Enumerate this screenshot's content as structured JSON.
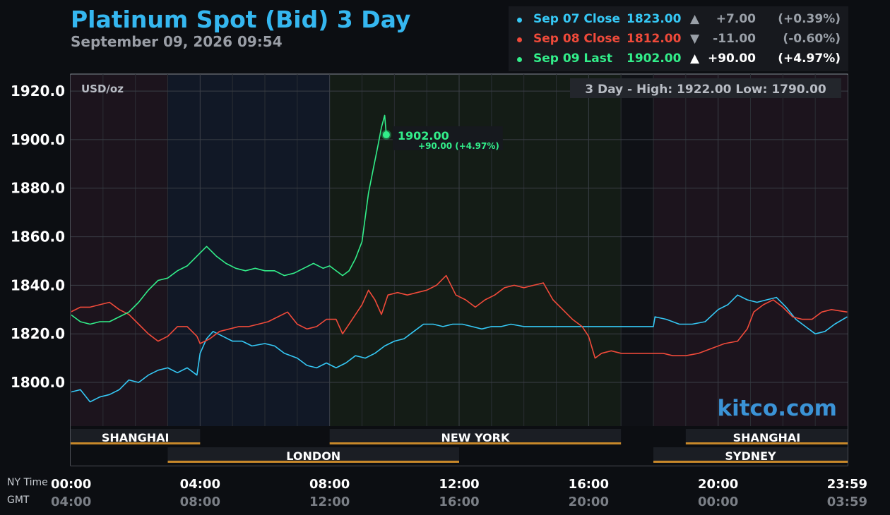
{
  "header": {
    "title": "Platinum Spot (Bid) 3 Day",
    "subtitle": "September 09, 2026 09:54"
  },
  "legend": [
    {
      "label": "Sep 07 Close",
      "price": "1823.00",
      "arrow": "▲",
      "change": "+7.00",
      "pct": "(+0.39%)",
      "color": "#35c8f5"
    },
    {
      "label": "Sep 08 Close",
      "price": "1812.00",
      "arrow": "▼",
      "change": "-11.00",
      "pct": "(-0.60%)",
      "color": "#f04a3a"
    },
    {
      "label": "Sep 09 Last",
      "price": "1902.00",
      "arrow": "▲",
      "change": "+90.00",
      "pct": "(+4.97%)",
      "color": "#32ee8a"
    }
  ],
  "chart_data": {
    "type": "line",
    "unit": "USD/oz",
    "range_label": "3 Day - High: 1922.00  Low: 1790.00",
    "ylim": [
      1782,
      1927
    ],
    "y_ticks": [
      "1920.0",
      "1900.0",
      "1880.0",
      "1860.0",
      "1840.0",
      "1820.0",
      "1800.0"
    ],
    "x_ticks_ny": [
      "00:00",
      "04:00",
      "08:00",
      "12:00",
      "16:00",
      "20:00",
      "23:59"
    ],
    "x_ticks_gmt": [
      "04:00",
      "08:00",
      "12:00",
      "16:00",
      "20:00",
      "00:00",
      "03:59"
    ],
    "axis_names": {
      "ny": "NY Time",
      "gmt": "GMT"
    },
    "last_point": {
      "time_h": 9.75,
      "value": 1902.0,
      "label": "1902.00",
      "change": "+90.00 (+4.97%)"
    },
    "sessions": [
      {
        "name": "SHANGHAI",
        "start": 0,
        "end": 4,
        "row": 1
      },
      {
        "name": "NEW YORK",
        "start": 8,
        "end": 17,
        "row": 1
      },
      {
        "name": "SHANGHAI",
        "start": 19,
        "end": 24,
        "row": 1
      },
      {
        "name": "LONDON",
        "start": 3,
        "end": 12,
        "row": 2
      },
      {
        "name": "SYDNEY",
        "start": 18,
        "end": 24,
        "row": 2
      }
    ],
    "series": [
      {
        "name": "Sep 07 Close",
        "color": "#35c8f5",
        "points": [
          [
            0,
            1796
          ],
          [
            0.3,
            1797
          ],
          [
            0.6,
            1792
          ],
          [
            0.9,
            1794
          ],
          [
            1.2,
            1795
          ],
          [
            1.5,
            1797
          ],
          [
            1.8,
            1801
          ],
          [
            2.1,
            1800
          ],
          [
            2.4,
            1803
          ],
          [
            2.7,
            1805
          ],
          [
            3.0,
            1806
          ],
          [
            3.3,
            1804
          ],
          [
            3.6,
            1806
          ],
          [
            3.9,
            1803
          ],
          [
            4.0,
            1812
          ],
          [
            4.2,
            1818
          ],
          [
            4.4,
            1821
          ],
          [
            4.7,
            1819
          ],
          [
            5.0,
            1817
          ],
          [
            5.3,
            1817
          ],
          [
            5.6,
            1815
          ],
          [
            6.0,
            1816
          ],
          [
            6.3,
            1815
          ],
          [
            6.6,
            1812
          ],
          [
            7.0,
            1810
          ],
          [
            7.3,
            1807
          ],
          [
            7.6,
            1806
          ],
          [
            7.9,
            1808
          ],
          [
            8.2,
            1806
          ],
          [
            8.5,
            1808
          ],
          [
            8.8,
            1811
          ],
          [
            9.1,
            1810
          ],
          [
            9.4,
            1812
          ],
          [
            9.7,
            1815
          ],
          [
            10.0,
            1817
          ],
          [
            10.3,
            1818
          ],
          [
            10.6,
            1821
          ],
          [
            10.9,
            1824
          ],
          [
            11.2,
            1824
          ],
          [
            11.5,
            1823
          ],
          [
            11.8,
            1824
          ],
          [
            12.1,
            1824
          ],
          [
            12.4,
            1823
          ],
          [
            12.7,
            1822
          ],
          [
            13.0,
            1823
          ],
          [
            13.3,
            1823
          ],
          [
            13.6,
            1824
          ],
          [
            14.0,
            1823
          ],
          [
            15.0,
            1823
          ],
          [
            16.0,
            1823
          ],
          [
            17.0,
            1823
          ],
          [
            18.0,
            1823
          ],
          [
            18.05,
            1827
          ],
          [
            18.4,
            1826
          ],
          [
            18.8,
            1824
          ],
          [
            19.2,
            1824
          ],
          [
            19.6,
            1825
          ],
          [
            20.0,
            1830
          ],
          [
            20.3,
            1832
          ],
          [
            20.6,
            1836
          ],
          [
            20.9,
            1834
          ],
          [
            21.2,
            1833
          ],
          [
            21.5,
            1834
          ],
          [
            21.8,
            1835
          ],
          [
            22.1,
            1831
          ],
          [
            22.4,
            1826
          ],
          [
            22.7,
            1823
          ],
          [
            23.0,
            1820
          ],
          [
            23.3,
            1821
          ],
          [
            23.6,
            1824
          ],
          [
            23.99,
            1827
          ]
        ]
      },
      {
        "name": "Sep 08 Close",
        "color": "#f04a3a",
        "points": [
          [
            0,
            1829
          ],
          [
            0.3,
            1831
          ],
          [
            0.6,
            1831
          ],
          [
            0.9,
            1832
          ],
          [
            1.2,
            1833
          ],
          [
            1.5,
            1830
          ],
          [
            1.8,
            1828
          ],
          [
            2.1,
            1824
          ],
          [
            2.4,
            1820
          ],
          [
            2.7,
            1817
          ],
          [
            3.0,
            1819
          ],
          [
            3.3,
            1823
          ],
          [
            3.6,
            1823
          ],
          [
            3.9,
            1819
          ],
          [
            4.0,
            1816
          ],
          [
            4.3,
            1818
          ],
          [
            4.6,
            1821
          ],
          [
            4.9,
            1822
          ],
          [
            5.2,
            1823
          ],
          [
            5.5,
            1823
          ],
          [
            5.8,
            1824
          ],
          [
            6.1,
            1825
          ],
          [
            6.4,
            1827
          ],
          [
            6.7,
            1829
          ],
          [
            7.0,
            1824
          ],
          [
            7.3,
            1822
          ],
          [
            7.6,
            1823
          ],
          [
            7.9,
            1826
          ],
          [
            8.2,
            1826
          ],
          [
            8.4,
            1820
          ],
          [
            8.7,
            1826
          ],
          [
            9.0,
            1832
          ],
          [
            9.2,
            1838
          ],
          [
            9.4,
            1834
          ],
          [
            9.6,
            1828
          ],
          [
            9.8,
            1836
          ],
          [
            10.1,
            1837
          ],
          [
            10.4,
            1836
          ],
          [
            10.7,
            1837
          ],
          [
            11.0,
            1838
          ],
          [
            11.3,
            1840
          ],
          [
            11.6,
            1844
          ],
          [
            11.9,
            1836
          ],
          [
            12.2,
            1834
          ],
          [
            12.5,
            1831
          ],
          [
            12.8,
            1834
          ],
          [
            13.1,
            1836
          ],
          [
            13.4,
            1839
          ],
          [
            13.7,
            1840
          ],
          [
            14.0,
            1839
          ],
          [
            14.3,
            1840
          ],
          [
            14.6,
            1841
          ],
          [
            14.9,
            1834
          ],
          [
            15.2,
            1830
          ],
          [
            15.5,
            1826
          ],
          [
            15.8,
            1823
          ],
          [
            16.0,
            1819
          ],
          [
            16.2,
            1810
          ],
          [
            16.4,
            1812
          ],
          [
            16.7,
            1813
          ],
          [
            17.0,
            1812
          ],
          [
            17.5,
            1812
          ],
          [
            18.0,
            1812
          ],
          [
            18.3,
            1812
          ],
          [
            18.6,
            1811
          ],
          [
            19.0,
            1811
          ],
          [
            19.4,
            1812
          ],
          [
            19.8,
            1814
          ],
          [
            20.2,
            1816
          ],
          [
            20.6,
            1817
          ],
          [
            20.9,
            1822
          ],
          [
            21.1,
            1829
          ],
          [
            21.4,
            1832
          ],
          [
            21.7,
            1834
          ],
          [
            22.0,
            1831
          ],
          [
            22.3,
            1827
          ],
          [
            22.6,
            1826
          ],
          [
            22.9,
            1826
          ],
          [
            23.2,
            1829
          ],
          [
            23.5,
            1830
          ],
          [
            23.99,
            1829
          ]
        ]
      },
      {
        "name": "Sep 09 Last",
        "color": "#32ee8a",
        "points": [
          [
            0,
            1828
          ],
          [
            0.3,
            1825
          ],
          [
            0.6,
            1824
          ],
          [
            0.9,
            1825
          ],
          [
            1.2,
            1825
          ],
          [
            1.5,
            1827
          ],
          [
            1.8,
            1829
          ],
          [
            2.1,
            1833
          ],
          [
            2.4,
            1838
          ],
          [
            2.7,
            1842
          ],
          [
            3.0,
            1843
          ],
          [
            3.3,
            1846
          ],
          [
            3.6,
            1848
          ],
          [
            3.9,
            1852
          ],
          [
            4.2,
            1856
          ],
          [
            4.5,
            1852
          ],
          [
            4.8,
            1849
          ],
          [
            5.1,
            1847
          ],
          [
            5.4,
            1846
          ],
          [
            5.7,
            1847
          ],
          [
            6.0,
            1846
          ],
          [
            6.3,
            1846
          ],
          [
            6.6,
            1844
          ],
          [
            6.9,
            1845
          ],
          [
            7.2,
            1847
          ],
          [
            7.5,
            1849
          ],
          [
            7.8,
            1847
          ],
          [
            8.0,
            1848
          ],
          [
            8.2,
            1846
          ],
          [
            8.4,
            1844
          ],
          [
            8.6,
            1846
          ],
          [
            8.8,
            1851
          ],
          [
            9.0,
            1858
          ],
          [
            9.1,
            1868
          ],
          [
            9.2,
            1878
          ],
          [
            9.35,
            1888
          ],
          [
            9.5,
            1898
          ],
          [
            9.6,
            1905
          ],
          [
            9.7,
            1910
          ],
          [
            9.75,
            1902
          ]
        ]
      }
    ]
  },
  "watermark": "kitco.com"
}
